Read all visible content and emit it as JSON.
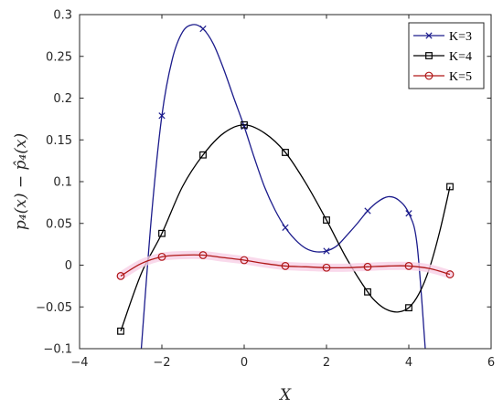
{
  "chart_data": {
    "type": "line",
    "xlabel": "X",
    "ylabel": "p₄(x) − p̂₄(x)",
    "xlim": [
      -4,
      6
    ],
    "ylim": [
      -0.1,
      0.3
    ],
    "xticks": [
      -4,
      -2,
      0,
      2,
      4,
      6
    ],
    "yticks": [
      -0.1,
      -0.05,
      0,
      0.05,
      0.1,
      0.15,
      0.2,
      0.25,
      0.3
    ],
    "xtick_labels": [
      "−4",
      "−2",
      "0",
      "2",
      "4",
      "6"
    ],
    "ytick_labels": [
      "−0.1",
      "−0.05",
      "0",
      "0.05",
      "0.1",
      "0.15",
      "0.2",
      "0.25",
      "0.3"
    ],
    "grid": false,
    "legend_position": "top-right",
    "series": [
      {
        "name": "K=3",
        "color": "#1c1c8c",
        "marker": "x",
        "marker_points": {
          "x": [
            -2,
            -1,
            0,
            1,
            2,
            3,
            4
          ],
          "y": [
            0.179,
            0.283,
            0.166,
            0.045,
            0.017,
            0.065,
            0.062
          ]
        },
        "curve": {
          "x": [
            -2.5,
            -2.25,
            -2,
            -1.75,
            -1.5,
            -1.25,
            -1,
            -0.75,
            -0.5,
            -0.25,
            0,
            0.25,
            0.5,
            0.75,
            1,
            1.25,
            1.5,
            1.75,
            2,
            2.25,
            2.5,
            2.75,
            3,
            3.25,
            3.5,
            3.75,
            4,
            4.2,
            4.4
          ],
          "y": [
            -0.1,
            0.06,
            0.179,
            0.246,
            0.279,
            0.288,
            0.283,
            0.265,
            0.235,
            0.2,
            0.166,
            0.128,
            0.093,
            0.066,
            0.045,
            0.03,
            0.02,
            0.016,
            0.017,
            0.023,
            0.036,
            0.05,
            0.065,
            0.076,
            0.082,
            0.078,
            0.062,
            0.025,
            -0.1
          ]
        }
      },
      {
        "name": "K=4",
        "color": "#000000",
        "marker": "square",
        "marker_points": {
          "x": [
            -3,
            -2,
            -1,
            0,
            1,
            2,
            3,
            4,
            5
          ],
          "y": [
            -0.079,
            0.038,
            0.132,
            0.168,
            0.135,
            0.054,
            -0.032,
            -0.051,
            0.094
          ]
        },
        "curve": {
          "x": [
            -3,
            -2.5,
            -2,
            -1.5,
            -1,
            -0.5,
            0,
            0.5,
            1,
            1.5,
            2,
            2.5,
            3,
            3.25,
            3.5,
            3.75,
            4,
            4.25,
            4.5,
            4.75,
            5
          ],
          "y": [
            -0.079,
            -0.01,
            0.038,
            0.094,
            0.132,
            0.158,
            0.168,
            0.158,
            0.135,
            0.098,
            0.054,
            0.007,
            -0.032,
            -0.046,
            -0.054,
            -0.056,
            -0.051,
            -0.034,
            -0.004,
            0.04,
            0.094
          ]
        }
      },
      {
        "name": "K=5",
        "color": "#b01818",
        "marker": "circle",
        "marker_points": {
          "x": [
            -3,
            -2,
            -1,
            0,
            1,
            2,
            3,
            4,
            5
          ],
          "y": [
            -0.013,
            0.01,
            0.012,
            0.006,
            -0.001,
            -0.003,
            -0.002,
            -0.001,
            -0.011
          ]
        },
        "curve": {
          "x": [
            -3,
            -2.5,
            -2,
            -1.5,
            -1,
            -0.5,
            0,
            0.5,
            1,
            1.5,
            2,
            2.5,
            3,
            3.5,
            4,
            4.5,
            5
          ],
          "y": [
            -0.013,
            0.002,
            0.01,
            0.012,
            0.012,
            0.009,
            0.006,
            0.002,
            -0.001,
            -0.002,
            -0.003,
            -0.003,
            -0.002,
            -0.001,
            -0.001,
            -0.004,
            -0.011
          ]
        }
      }
    ]
  }
}
